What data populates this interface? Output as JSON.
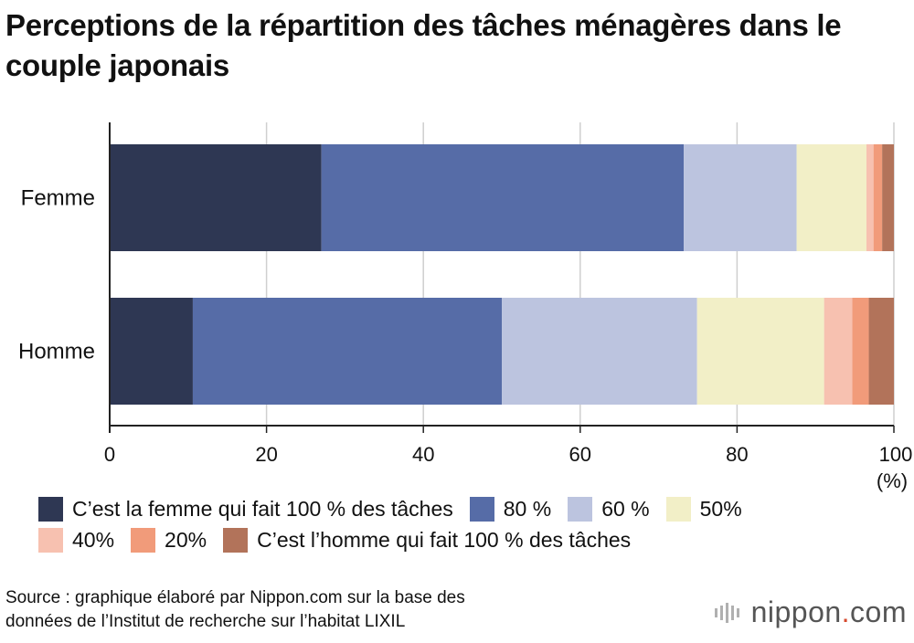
{
  "chart_data": {
    "type": "bar",
    "orientation": "horizontal",
    "stacked": true,
    "title": "Perceptions de la répartition des tâches ménagères dans le couple japonais",
    "categories": [
      "Femme",
      "Homme"
    ],
    "series": [
      {
        "name": "C’est la femme qui fait 100 % des tâches",
        "color": "#2e3753",
        "values": [
          27.0,
          10.6
        ]
      },
      {
        "name": "80 %",
        "color": "#566ca7",
        "values": [
          46.2,
          39.4
        ]
      },
      {
        "name": "60 %",
        "color": "#bcc4df",
        "values": [
          14.4,
          24.9
        ]
      },
      {
        "name": "50%",
        "color": "#f2efc7",
        "values": [
          8.9,
          16.2
        ]
      },
      {
        "name": "40%",
        "color": "#f7c1b0",
        "values": [
          0.9,
          3.6
        ]
      },
      {
        "name": "20%",
        "color": "#f19b7a",
        "values": [
          1.1,
          2.1
        ]
      },
      {
        "name": "C’est l’homme qui fait 100 % des tâches",
        "color": "#b2735a",
        "values": [
          1.5,
          3.2
        ]
      }
    ],
    "xlim": [
      0,
      100
    ],
    "xticks": [
      "0",
      "20",
      "40",
      "60",
      "80",
      "100"
    ],
    "xunit": "(%)",
    "grid": true,
    "legend_position": "bottom"
  },
  "source": {
    "line1": "Source : graphique élaboré par Nippon.com sur la base des",
    "line2": "données de l’Institut de recherche sur l’habitat LIXIL"
  },
  "logo": {
    "name": "nippon",
    "dot": ".",
    "suffix": "com"
  }
}
